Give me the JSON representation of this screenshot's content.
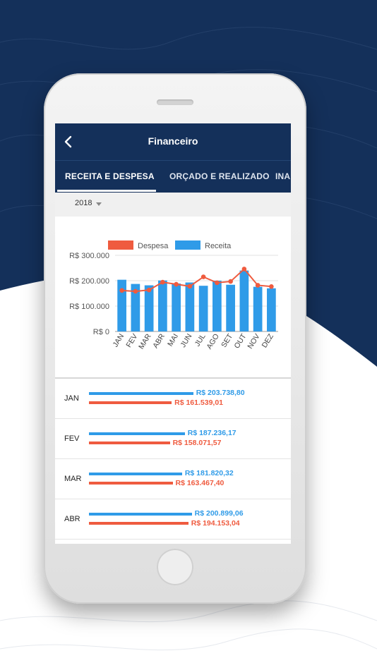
{
  "header": {
    "title": "Financeiro",
    "back_icon": "chevron-left-icon"
  },
  "tabs": [
    {
      "label": "RECEITA E DESPESA",
      "active": true
    },
    {
      "label": "ORÇADO E REALIZADO",
      "active": false
    },
    {
      "label": "INA",
      "active": false
    }
  ],
  "year_selector": {
    "value": "2018",
    "icon": "caret-down-icon"
  },
  "colors": {
    "primary": "#14305a",
    "receita": "#2f9be8",
    "despesa": "#ef5b3f"
  },
  "chart_data": {
    "type": "bar",
    "legend": [
      "Despesa",
      "Receita"
    ],
    "legend_position": "top",
    "categories": [
      "JAN",
      "FEV",
      "MAR",
      "ABR",
      "MAI",
      "JUN",
      "JUL",
      "AGO",
      "SET",
      "OUT",
      "NOV",
      "DEZ"
    ],
    "y_ticks": [
      "R$ 0",
      "R$ 100.000",
      "R$ 200.000",
      "R$ 300.000"
    ],
    "ylim": [
      0,
      300000
    ],
    "grid": true,
    "series": [
      {
        "name": "Receita",
        "type": "bar",
        "values": [
          203738.8,
          187236.17,
          181820.32,
          200899.06,
          189000,
          193000,
          180000,
          200000,
          184000,
          240000,
          176000,
          170000
        ]
      },
      {
        "name": "Despesa",
        "type": "line",
        "values": [
          161539.01,
          158071.57,
          163467.4,
          194153.04,
          186000,
          178000,
          215000,
          192000,
          197000,
          246000,
          182000,
          177000
        ]
      }
    ]
  },
  "monthly_list": [
    {
      "month": "JAN",
      "receita": "R$ 203.738,80",
      "despesa": "R$ 161.539,01",
      "receita_value": 203738.8,
      "despesa_value": 161539.01
    },
    {
      "month": "FEV",
      "receita": "R$ 187.236,17",
      "despesa": "R$ 158.071,57",
      "receita_value": 187236.17,
      "despesa_value": 158071.57
    },
    {
      "month": "MAR",
      "receita": "R$ 181.820,32",
      "despesa": "R$ 163.467,40",
      "receita_value": 181820.32,
      "despesa_value": 163467.4
    },
    {
      "month": "ABR",
      "receita": "R$ 200.899,06",
      "despesa": "R$ 194.153,04",
      "receita_value": 200899.06,
      "despesa_value": 194153.04
    }
  ]
}
